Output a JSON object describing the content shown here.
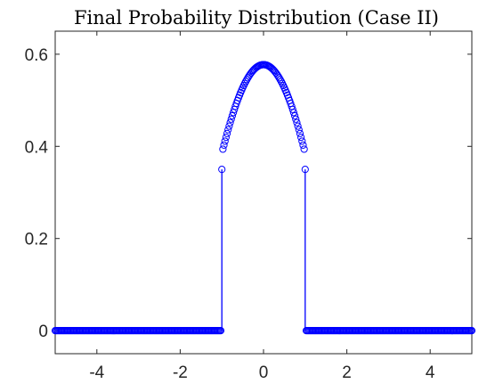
{
  "chart_data": {
    "type": "scatter",
    "title": "Final Probability Distribution (Case II)",
    "xlabel": "",
    "ylabel": "",
    "xlim": [
      -5,
      5
    ],
    "ylim": [
      -0.05,
      0.65
    ],
    "xticks": [
      -4,
      -2,
      0,
      2,
      4
    ],
    "xtick_labels": [
      "-4",
      "-2",
      "0",
      "2",
      "4"
    ],
    "yticks": [
      0,
      0.2,
      0.4,
      0.6
    ],
    "ytick_labels": [
      "0",
      "0.2",
      "0.4",
      "0.6"
    ],
    "grid": false,
    "box": true,
    "marker": "circle-open",
    "color": "#0000ff",
    "series": [
      {
        "x_range": [
          -5,
          5
        ],
        "points": 401,
        "piecewise": [
          {
            "x_range": [
              -5,
              -1
            ],
            "y": 0
          },
          {
            "x_range": [
              -1,
              1
            ],
            "formula": "0.5774*cos(0.8411*x)",
            "y_at_0": 0.5774,
            "y_at_pm1": 0.3849
          },
          {
            "x_range": [
              1,
              5
            ],
            "y": 0
          }
        ],
        "stems": [
          {
            "x": -1,
            "y_from": 0,
            "y_to": 0.35
          },
          {
            "x": 1,
            "y_from": 0,
            "y_to": 0.35
          }
        ]
      }
    ]
  }
}
